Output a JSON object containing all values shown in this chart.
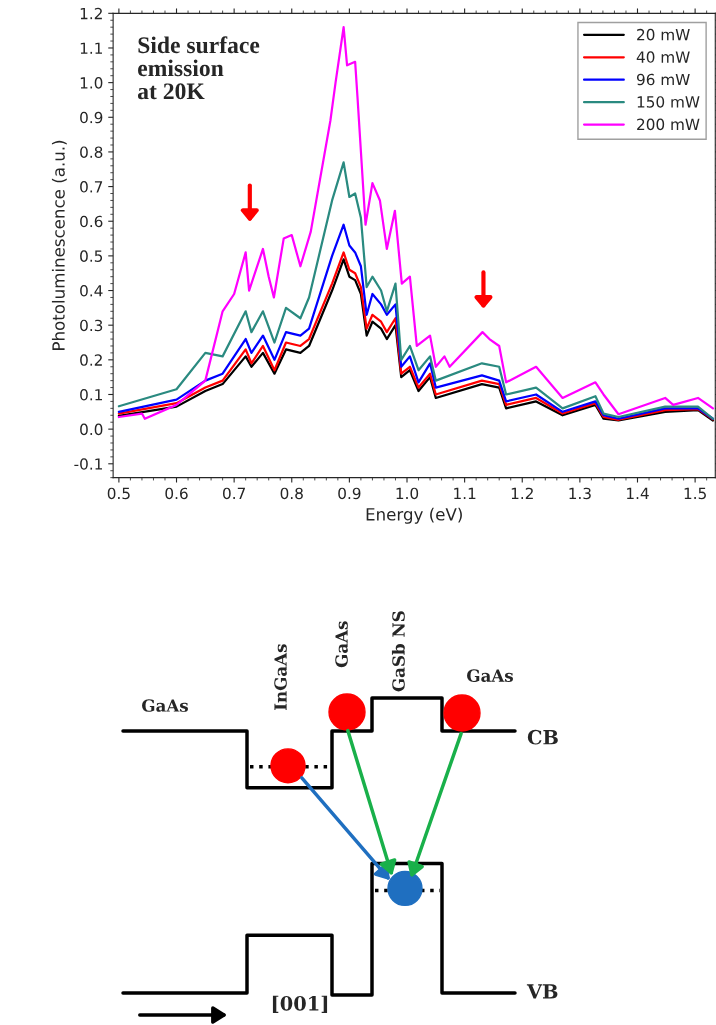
{
  "chart_data": [
    {
      "type": "line",
      "xlabel": "Energy (eV)",
      "ylabel": "Photoluminescence (a.u.)",
      "annotations": [
        "Side surface\nemission\nat 20K"
      ],
      "x": [
        0.5,
        0.6,
        0.65,
        0.68,
        0.72,
        0.73,
        0.75,
        0.77,
        0.79,
        0.815,
        0.83,
        0.87,
        0.89,
        0.9,
        0.91,
        0.92,
        0.93,
        0.94,
        0.955,
        0.965,
        0.98,
        0.99,
        1.005,
        1.02,
        1.04,
        1.05,
        1.13,
        1.16,
        1.172,
        1.224,
        1.27,
        1.327,
        1.341,
        1.367,
        1.448,
        1.505,
        1.531
      ],
      "series": [
        {
          "name": "20 mW",
          "color": "#000000",
          "values": [
            0.038,
            0.065,
            0.11,
            0.13,
            0.21,
            0.18,
            0.22,
            0.16,
            0.23,
            0.22,
            0.24,
            0.4,
            0.49,
            0.44,
            0.43,
            0.39,
            0.27,
            0.31,
            0.29,
            0.26,
            0.3,
            0.15,
            0.17,
            0.11,
            0.15,
            0.09,
            0.13,
            0.12,
            0.06,
            0.08,
            0.04,
            0.07,
            0.03,
            0.025,
            0.05,
            0.055,
            0.025
          ]
        },
        {
          "name": "40 mW",
          "color": "#ff0000",
          "values": [
            0.045,
            0.075,
            0.12,
            0.14,
            0.23,
            0.19,
            0.24,
            0.17,
            0.25,
            0.24,
            0.26,
            0.42,
            0.51,
            0.46,
            0.45,
            0.41,
            0.29,
            0.33,
            0.31,
            0.28,
            0.32,
            0.16,
            0.18,
            0.12,
            0.16,
            0.1,
            0.14,
            0.13,
            0.07,
            0.09,
            0.045,
            0.075,
            0.035,
            0.027,
            0.055,
            0.058,
            0.028
          ]
        },
        {
          "name": "96 mW",
          "color": "#0000ff",
          "values": [
            0.05,
            0.085,
            0.14,
            0.16,
            0.26,
            0.22,
            0.27,
            0.2,
            0.28,
            0.27,
            0.29,
            0.5,
            0.59,
            0.53,
            0.51,
            0.47,
            0.33,
            0.39,
            0.36,
            0.33,
            0.36,
            0.18,
            0.21,
            0.135,
            0.19,
            0.12,
            0.155,
            0.14,
            0.08,
            0.1,
            0.05,
            0.08,
            0.04,
            0.03,
            0.06,
            0.06,
            0.03
          ]
        },
        {
          "name": "150 mW",
          "color": "#2a8a80",
          "values": [
            0.066,
            0.115,
            0.22,
            0.21,
            0.34,
            0.28,
            0.34,
            0.25,
            0.35,
            0.32,
            0.38,
            0.66,
            0.77,
            0.67,
            0.68,
            0.61,
            0.41,
            0.44,
            0.4,
            0.34,
            0.42,
            0.2,
            0.24,
            0.17,
            0.21,
            0.14,
            0.19,
            0.18,
            0.1,
            0.12,
            0.06,
            0.095,
            0.045,
            0.035,
            0.065,
            0.065,
            0.03
          ]
        },
        {
          "name": "200 mW",
          "color": "#ff00ff",
          "x": [
            0.5,
            0.54,
            0.545,
            0.6,
            0.65,
            0.68,
            0.7,
            0.72,
            0.726,
            0.75,
            0.76,
            0.769,
            0.786,
            0.8,
            0.815,
            0.833,
            0.867,
            0.876,
            0.89,
            0.896,
            0.91,
            0.914,
            0.928,
            0.94,
            0.953,
            0.965,
            0.979,
            0.991,
            1.005,
            1.017,
            1.04,
            1.05,
            1.065,
            1.074,
            1.131,
            1.143,
            1.16,
            1.172,
            1.224,
            1.27,
            1.327,
            1.341,
            1.367,
            1.448,
            1.462,
            1.505,
            1.531
          ],
          "values": [
            0.035,
            0.045,
            0.03,
            0.07,
            0.14,
            0.34,
            0.39,
            0.51,
            0.4,
            0.52,
            0.44,
            0.38,
            0.55,
            0.56,
            0.47,
            0.57,
            0.89,
            1.0,
            1.16,
            1.05,
            1.06,
            0.96,
            0.59,
            0.71,
            0.66,
            0.52,
            0.63,
            0.42,
            0.44,
            0.24,
            0.27,
            0.18,
            0.21,
            0.18,
            0.28,
            0.26,
            0.24,
            0.135,
            0.18,
            0.09,
            0.135,
            0.1,
            0.043,
            0.09,
            0.07,
            0.09,
            0.06
          ]
        }
      ],
      "xlim": [
        0.49,
        1.535
      ],
      "xticks": [
        {
          "value": 0.5,
          "label": "0.5"
        },
        {
          "value": 0.6,
          "label": "0.6"
        },
        {
          "value": 0.7,
          "label": "0.7"
        },
        {
          "value": 0.8,
          "label": "0.8"
        },
        {
          "value": 0.9,
          "label": "0.9"
        },
        {
          "value": 1.0,
          "label": "1.0"
        },
        {
          "value": 1.1,
          "label": "1.1"
        },
        {
          "value": 1.2,
          "label": "1.2"
        },
        {
          "value": 1.3,
          "label": "1.3"
        },
        {
          "value": 1.4,
          "label": "1.4"
        },
        {
          "value": 1.5,
          "label": "1.5"
        }
      ],
      "ylim": [
        -0.14,
        1.2
      ],
      "yticks": [
        -0.1,
        {
          "value": 0.0,
          "label": "0.0"
        },
        0.1,
        0.2,
        0.3,
        0.4,
        0.5,
        0.6,
        0.7,
        0.8,
        0.9,
        {
          "value": 1.0,
          "label": "1.0"
        },
        1.1,
        1.2
      ],
      "legend": "top right",
      "grid": false,
      "line_style": "solid",
      "marker": "none"
    },
    {
      "type": "other",
      "annotations": [
        "GaAs",
        "InGaAs",
        "GaAs",
        "GaSb NS",
        "GaAs",
        "CB",
        "VB",
        "[001]"
      ]
    }
  ]
}
